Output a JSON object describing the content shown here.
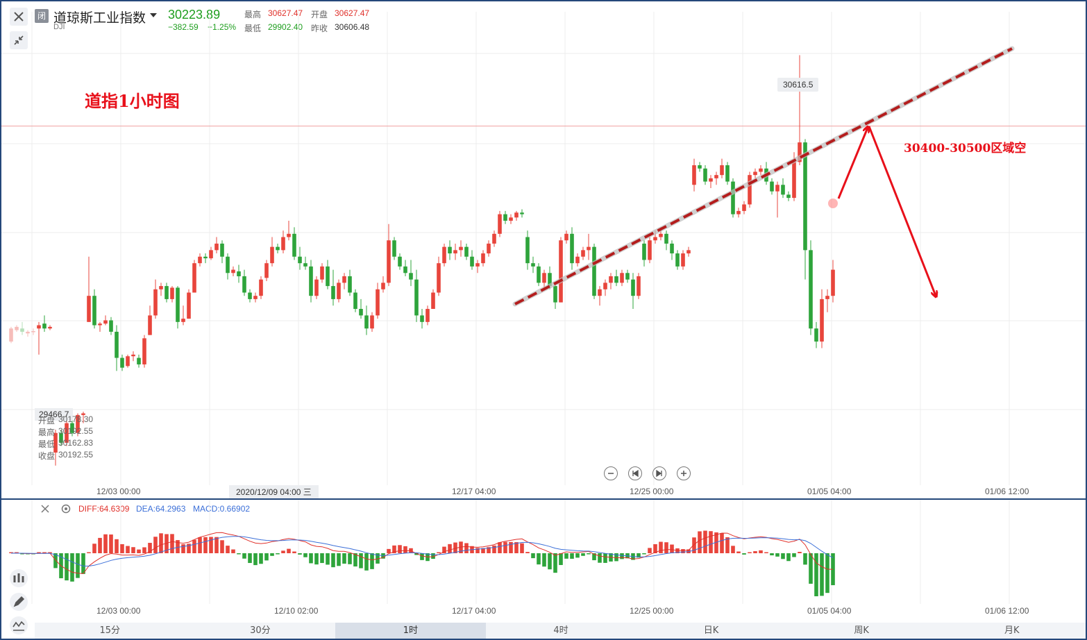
{
  "header": {
    "status_badge": "闭",
    "name": "道琼斯工业指数",
    "code": "DJI",
    "price": "30223.89",
    "change": "−382.59",
    "change_pct": "−1.25%",
    "labels": {
      "high": "最高",
      "open": "开盘",
      "low": "最低",
      "prev_close": "昨收"
    },
    "high": "30627.47",
    "open": "30627.47",
    "low": "29902.40",
    "prev_close": "30606.48"
  },
  "annotations": {
    "title": "道指1小时图",
    "zone_text": "30400-30500区域空",
    "peak_label": "30616.5",
    "low_label": "29466.7"
  },
  "ohlc_tooltip": {
    "open_label": "开盘",
    "open": "30178.30",
    "high_label": "最高",
    "high": "30192.55",
    "low_label": "最低",
    "low": "30162.83",
    "close_label": "收盘",
    "close": "30192.55"
  },
  "cursor_date_label": "2020/12/09 04:00 三",
  "main_x_labels": [
    "12/03 00:00",
    "12/17 04:00",
    "12/25 00:00",
    "01/05 04:00",
    "01/06 12:00"
  ],
  "macd_x_labels": [
    "12/03 00:00",
    "12/10 02:00",
    "12/17 04:00",
    "12/25 00:00",
    "01/05 04:00",
    "01/06 12:00"
  ],
  "macd_legend": {
    "diff": "DIFF:64.6309",
    "dea": "DEA:64.2963",
    "macd": "MACD:0.66902"
  },
  "periods": [
    "15分",
    "30分",
    "1时",
    "4时",
    "日K",
    "周K",
    "月K"
  ],
  "active_period": "1时",
  "icons": {
    "close": "close-icon",
    "collapse": "collapse-icon",
    "settings": "gear-icon",
    "zoom_out": "zoom-out-icon",
    "zoom_in": "zoom-in-icon",
    "prev": "step-back-icon",
    "next": "step-forward-icon",
    "candles": "candles-icon",
    "draw": "pencil-icon",
    "indicator": "indicator-icon"
  },
  "colors": {
    "up": "#e8453c",
    "down": "#2ea43b",
    "diff": "#e0302a",
    "dea": "#3b6fd8",
    "trendline": "#b41d1d",
    "arrow": "#e8101a"
  },
  "chart_data": {
    "type": "candlestick",
    "title": "道指1小时图",
    "ylim": [
      29300,
      30750
    ],
    "horizontal_reference": 30400,
    "candles_hint": "hourly DJI OHLC, approximate, read from chart",
    "candles": [
      [
        29740,
        29785,
        29735,
        29780
      ],
      [
        29775,
        29790,
        29770,
        29785
      ],
      [
        29780,
        29800,
        29760,
        29770
      ],
      [
        29765,
        29775,
        29755,
        29770
      ],
      [
        29770,
        29780,
        29760,
        29772
      ],
      [
        29780,
        29800,
        29700,
        29790
      ],
      [
        29795,
        29820,
        29770,
        29780
      ],
      [
        29780,
        29790,
        29775,
        29785
      ],
      [
        29400,
        29470,
        29360,
        29460
      ],
      [
        29460,
        29470,
        29420,
        29430
      ],
      [
        29430,
        29500,
        29420,
        29490
      ],
      [
        29490,
        29520,
        29450,
        29460
      ],
      [
        29460,
        29520,
        29450,
        29515
      ],
      [
        29515,
        29525,
        29490,
        29520
      ],
      [
        29800,
        30000,
        29800,
        29880
      ],
      [
        29880,
        29900,
        29780,
        29790
      ],
      [
        29790,
        29800,
        29770,
        29795
      ],
      [
        29795,
        29820,
        29790,
        29805
      ],
      [
        29805,
        29815,
        29760,
        29770
      ],
      [
        29770,
        29790,
        29650,
        29690
      ],
      [
        29690,
        29700,
        29650,
        29660
      ],
      [
        29665,
        29700,
        29660,
        29695
      ],
      [
        29695,
        29710,
        29680,
        29700
      ],
      [
        29690,
        29700,
        29660,
        29670
      ],
      [
        29670,
        29760,
        29660,
        29750
      ],
      [
        29760,
        29850,
        29760,
        29820
      ],
      [
        29820,
        29930,
        29810,
        29900
      ],
      [
        29900,
        29920,
        29880,
        29910
      ],
      [
        29910,
        29920,
        29860,
        29870
      ],
      [
        29870,
        29910,
        29860,
        29905
      ],
      [
        29905,
        29910,
        29780,
        29800
      ],
      [
        29800,
        29850,
        29790,
        29810
      ],
      [
        29810,
        29900,
        29810,
        29890
      ],
      [
        29890,
        29990,
        29890,
        29980
      ],
      [
        29980,
        30010,
        29970,
        30000
      ],
      [
        30000,
        30010,
        29980,
        29995
      ],
      [
        29995,
        30030,
        29990,
        30020
      ],
      [
        30020,
        30060,
        30010,
        30040
      ],
      [
        30040,
        30050,
        29980,
        30000
      ],
      [
        30000,
        30010,
        29930,
        29950
      ],
      [
        29950,
        29970,
        29940,
        29960
      ],
      [
        29955,
        29975,
        29920,
        29940
      ],
      [
        29940,
        29960,
        29880,
        29890
      ],
      [
        29890,
        29900,
        29860,
        29870
      ],
      [
        29870,
        29890,
        29860,
        29880
      ],
      [
        29880,
        29940,
        29870,
        29930
      ],
      [
        29935,
        29990,
        29925,
        29980
      ],
      [
        29980,
        30060,
        29970,
        30030
      ],
      [
        30030,
        30040,
        30010,
        30020
      ],
      [
        30020,
        30080,
        30010,
        30060
      ],
      [
        30060,
        30110,
        30050,
        30070
      ],
      [
        30070,
        30090,
        29990,
        30000
      ],
      [
        30000,
        30030,
        29960,
        29980
      ],
      [
        29980,
        30000,
        29960,
        29970
      ],
      [
        29970,
        29990,
        29860,
        29880
      ],
      [
        29880,
        29940,
        29870,
        29930
      ],
      [
        29930,
        29980,
        29920,
        29970
      ],
      [
        29970,
        29990,
        29900,
        29910
      ],
      [
        29910,
        29960,
        29850,
        29870
      ],
      [
        29870,
        29930,
        29860,
        29920
      ],
      [
        29920,
        29950,
        29900,
        29940
      ],
      [
        29940,
        29960,
        29880,
        29890
      ],
      [
        29890,
        29900,
        29830,
        29840
      ],
      [
        29840,
        29870,
        29810,
        29820
      ],
      [
        29820,
        29850,
        29760,
        29780
      ],
      [
        29780,
        29830,
        29770,
        29820
      ],
      [
        29820,
        29920,
        29810,
        29900
      ],
      [
        29900,
        29940,
        29890,
        29920
      ],
      [
        29920,
        30100,
        29910,
        30050
      ],
      [
        30050,
        30060,
        29990,
        30000
      ],
      [
        30000,
        30010,
        29960,
        29970
      ],
      [
        29970,
        29990,
        29940,
        29950
      ],
      [
        29950,
        29990,
        29910,
        29930
      ],
      [
        29930,
        29960,
        29800,
        29820
      ],
      [
        29820,
        29840,
        29780,
        29800
      ],
      [
        29800,
        29850,
        29790,
        29840
      ],
      [
        29840,
        29900,
        29840,
        29890
      ],
      [
        29890,
        30000,
        29880,
        29980
      ],
      [
        29980,
        30040,
        29970,
        30030
      ],
      [
        30030,
        30050,
        29990,
        30010
      ],
      [
        30010,
        30040,
        29990,
        30020
      ],
      [
        30020,
        30050,
        30000,
        30030
      ],
      [
        30030,
        30040,
        29990,
        30000
      ],
      [
        30000,
        30020,
        29960,
        29970
      ],
      [
        29970,
        29990,
        29950,
        29980
      ],
      [
        29980,
        30020,
        29970,
        30010
      ],
      [
        30010,
        30050,
        30000,
        30040
      ],
      [
        30040,
        30080,
        30030,
        30070
      ],
      [
        30070,
        30140,
        30060,
        30130
      ],
      [
        30130,
        30140,
        30100,
        30110
      ],
      [
        30110,
        30130,
        30100,
        30120
      ],
      [
        30120,
        30140,
        30110,
        30135
      ],
      [
        30135,
        30145,
        30120,
        30130
      ],
      [
        30060,
        30080,
        29960,
        29980
      ],
      [
        29980,
        30000,
        29950,
        29970
      ],
      [
        29970,
        29980,
        29910,
        29920
      ],
      [
        29920,
        29960,
        29900,
        29950
      ],
      [
        29950,
        29970,
        29900,
        29910
      ],
      [
        29910,
        29920,
        29840,
        29860
      ],
      [
        29860,
        30060,
        29860,
        30050
      ],
      [
        30050,
        30080,
        30040,
        30070
      ],
      [
        30070,
        30090,
        29960,
        29980
      ],
      [
        29980,
        30010,
        29970,
        30000
      ],
      [
        30000,
        30030,
        29990,
        30020
      ],
      [
        30020,
        30070,
        29990,
        30030
      ],
      [
        30030,
        30040,
        29870,
        29880
      ],
      [
        29880,
        29910,
        29850,
        29900
      ],
      [
        29900,
        29930,
        29880,
        29920
      ],
      [
        29920,
        29950,
        29900,
        29940
      ],
      [
        29940,
        29960,
        29910,
        29920
      ],
      [
        29920,
        29960,
        29910,
        29950
      ],
      [
        29950,
        29960,
        29920,
        29930
      ],
      [
        29930,
        29950,
        29840,
        29880
      ],
      [
        29880,
        29950,
        29870,
        29940
      ],
      [
        30040,
        30050,
        29970,
        29990
      ],
      [
        29990,
        30060,
        29980,
        30050
      ],
      [
        30050,
        30080,
        30040,
        30060
      ],
      [
        30060,
        30090,
        30050,
        30070
      ],
      [
        30070,
        30080,
        30020,
        30040
      ],
      [
        30040,
        30050,
        29990,
        30010
      ],
      [
        30010,
        30020,
        29960,
        29970
      ],
      [
        29970,
        30020,
        29960,
        30010
      ],
      [
        30010,
        30030,
        30000,
        30020
      ],
      [
        30220,
        30300,
        30200,
        30280
      ],
      [
        30280,
        30290,
        30260,
        30270
      ],
      [
        30270,
        30280,
        30220,
        30230
      ],
      [
        30230,
        30250,
        30210,
        30240
      ],
      [
        30240,
        30260,
        30220,
        30250
      ],
      [
        30250,
        30300,
        30240,
        30280
      ],
      [
        30280,
        30290,
        30220,
        30230
      ],
      [
        30230,
        30240,
        30120,
        30130
      ],
      [
        30130,
        30150,
        30120,
        30140
      ],
      [
        30140,
        30170,
        30130,
        30160
      ],
      [
        30160,
        30260,
        30150,
        30250
      ],
      [
        30250,
        30270,
        30240,
        30260
      ],
      [
        30260,
        30280,
        30250,
        30270
      ],
      [
        30270,
        30290,
        30220,
        30230
      ],
      [
        30230,
        30240,
        30190,
        30200
      ],
      [
        30200,
        30230,
        30120,
        30220
      ],
      [
        30220,
        30240,
        30180,
        30190
      ],
      [
        30190,
        30200,
        30170,
        30180
      ],
      [
        30180,
        30320,
        30170,
        30290
      ],
      [
        30290,
        30617,
        30280,
        30350
      ],
      [
        30350,
        30360,
        29930,
        30020
      ],
      [
        30020,
        30050,
        29760,
        29780
      ],
      [
        29780,
        29800,
        29720,
        29740
      ],
      [
        29740,
        29900,
        29720,
        29870
      ],
      [
        29870,
        29900,
        29830,
        29880
      ],
      [
        29880,
        29990,
        29860,
        29960
      ]
    ],
    "macd": {
      "diff": 64.6309,
      "dea": 64.2963,
      "macd": 0.66902
    }
  }
}
